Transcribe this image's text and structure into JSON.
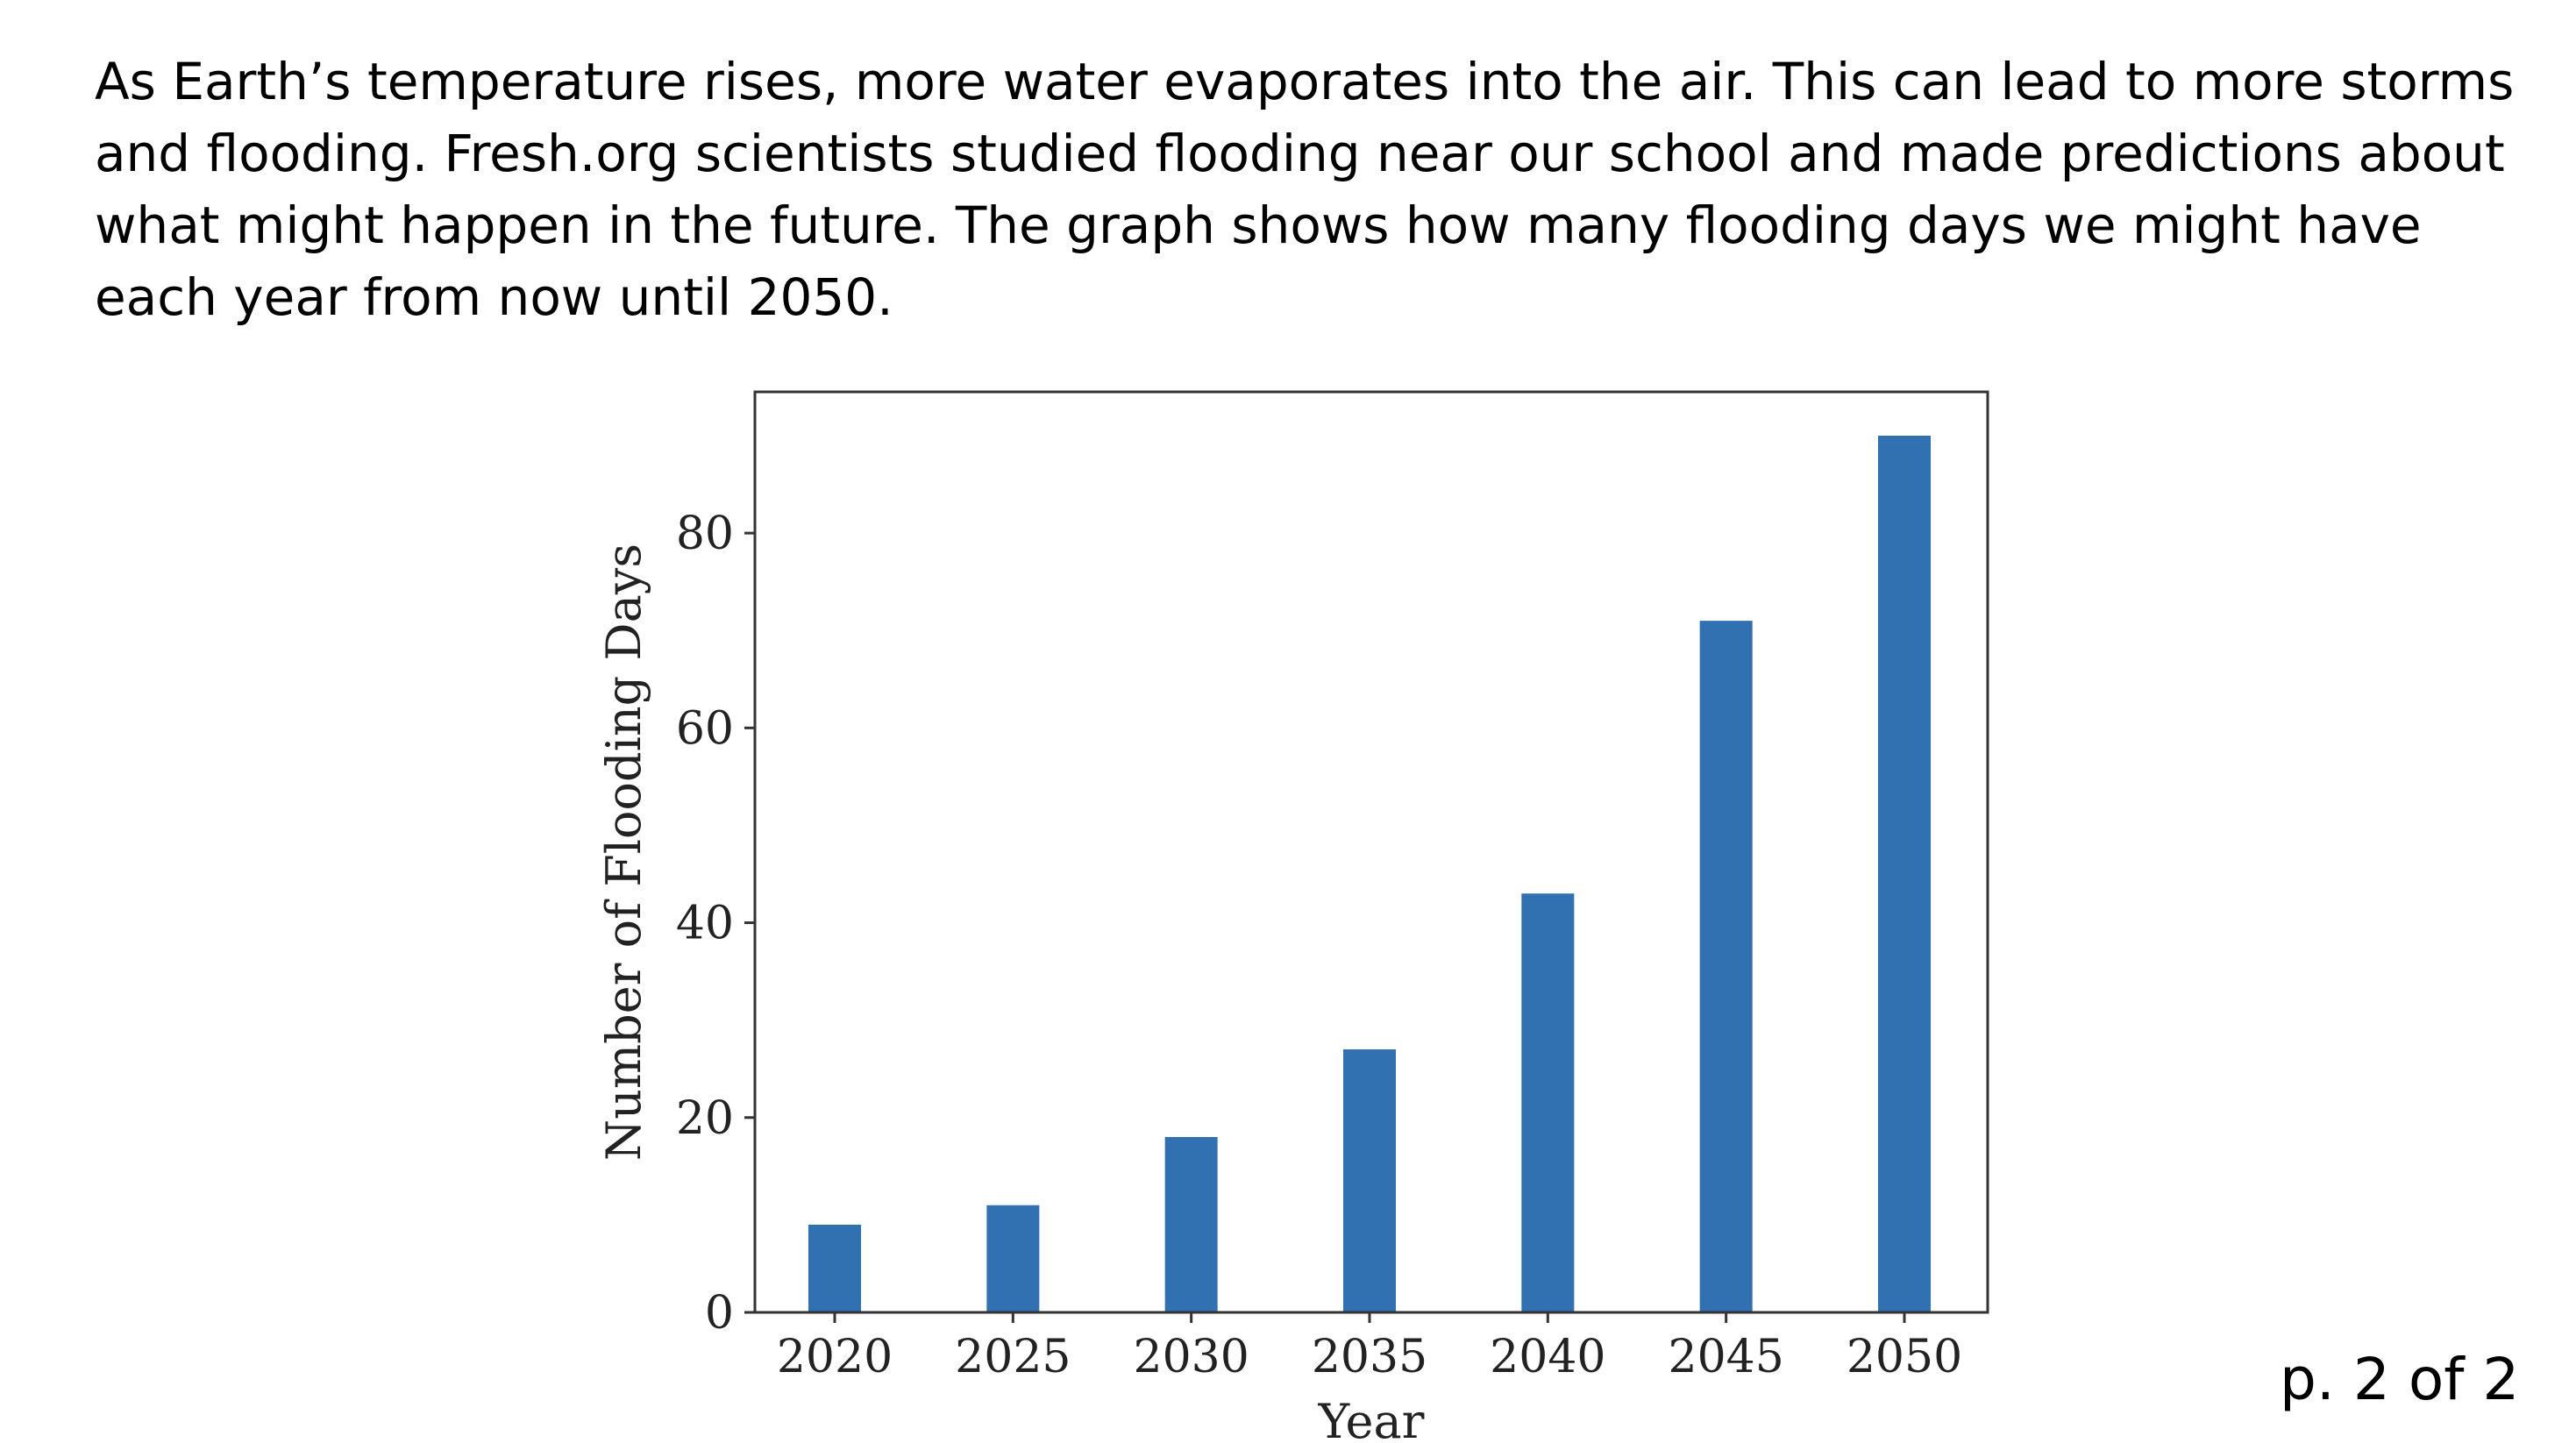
{
  "intro_text": "As Earth’s temperature rises, more water evaporates into the air. This can lead to more storms and flooding. Fresh.org scientists studied flooding near our school and made predictions about what might happen in the future. The graph shows how many flooding days we might have each year from now until 2050.",
  "page_label": "p. 2 of 2",
  "chart_data": {
    "type": "bar",
    "categories": [
      "2020",
      "2025",
      "2030",
      "2035",
      "2040",
      "2045",
      "2050"
    ],
    "values": [
      9,
      11,
      18,
      27,
      43,
      71,
      90
    ],
    "xlabel": "Year",
    "ylabel": "Number of Flooding Days",
    "ylim": [
      0,
      94.5
    ],
    "yticks": [
      0,
      20,
      40,
      60,
      80
    ],
    "bar_color": "#3171b1",
    "grid": false
  }
}
